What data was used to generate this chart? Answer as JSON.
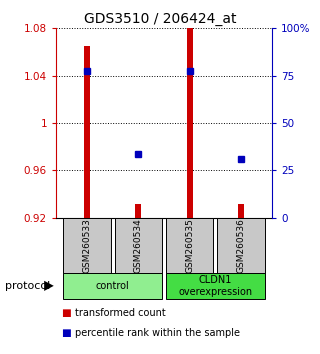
{
  "title": "GDS3510 / 206424_at",
  "samples": [
    "GSM260533",
    "GSM260534",
    "GSM260535",
    "GSM260536"
  ],
  "groups": [
    {
      "label": "control",
      "samples": [
        0,
        1
      ],
      "color": "#90EE90"
    },
    {
      "label": "CLDN1\noverexpression",
      "samples": [
        2,
        3
      ],
      "color": "#44DD44"
    }
  ],
  "red_bar_tops": [
    1.065,
    0.932,
    1.08,
    0.932
  ],
  "blue_marker_values": [
    1.044,
    0.974,
    1.044,
    0.97
  ],
  "ylim": [
    0.92,
    1.08
  ],
  "yticks_left": [
    0.92,
    0.96,
    1.0,
    1.04,
    1.08
  ],
  "ytick_labels_left": [
    "0.92",
    "0.96",
    "1",
    "1.04",
    "1.08"
  ],
  "yticks_right_pct": [
    0,
    25,
    50,
    75,
    100
  ],
  "ytick_labels_right": [
    "0",
    "25",
    "50",
    "75",
    "100%"
  ],
  "left_axis_color": "#CC0000",
  "right_axis_color": "#0000BB",
  "bar_color": "#CC0000",
  "marker_color": "#0000BB",
  "sample_box_color": "#C8C8C8",
  "bar_width": 0.12,
  "bar_bottom": 0.92,
  "legend_items": [
    {
      "color": "#CC0000",
      "label": "transformed count"
    },
    {
      "color": "#0000BB",
      "label": "percentile rank within the sample"
    }
  ]
}
